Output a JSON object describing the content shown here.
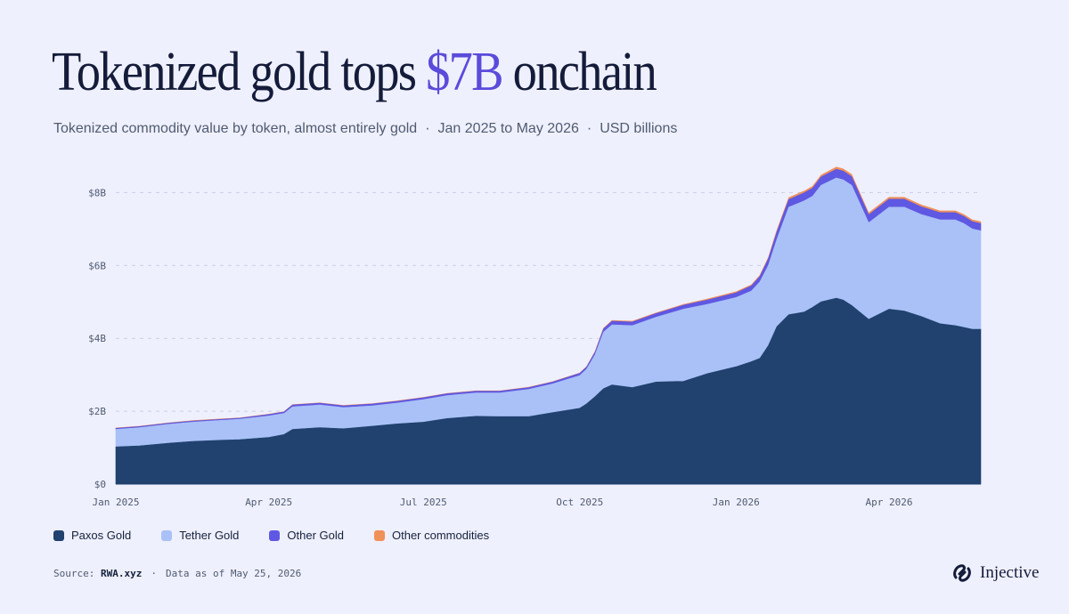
{
  "title": {
    "pre": "Tokenized gold tops ",
    "accent": "$7B",
    "post": " onchain"
  },
  "subtitle": {
    "part1": "Tokenized commodity value by token, almost entirely gold",
    "part2": "Jan 2025 to May 2026",
    "part3": "USD billions",
    "separator": "·"
  },
  "legend": [
    {
      "label": "Paxos Gold",
      "color": "#21416f"
    },
    {
      "label": "Tether Gold",
      "color": "#a9c1f7"
    },
    {
      "label": "Other Gold",
      "color": "#5f58e2"
    },
    {
      "label": "Other commodities",
      "color": "#f0915a"
    }
  ],
  "source": {
    "label": "Source:",
    "name": "RWA.xyz",
    "separator": "·",
    "asof": "Data as of May 25, 2026"
  },
  "brand": {
    "name": "Injective"
  },
  "chart_data": {
    "type": "area",
    "stacked": true,
    "grid": true,
    "ylim": [
      0,
      8.4
    ],
    "yticks": [
      0,
      2,
      4,
      6,
      8
    ],
    "ytick_labels": [
      "$0",
      "$2B",
      "$4B",
      "$6B",
      "$8B"
    ],
    "xlim": [
      "2025-01-01",
      "2026-05-25"
    ],
    "xticks": [
      "2025-01-01",
      "2025-04-01",
      "2025-07-01",
      "2025-10-01",
      "2026-01-01",
      "2026-04-01"
    ],
    "xtick_labels": [
      "Jan 2025",
      "Apr 2025",
      "Jul 2025",
      "Oct 2025",
      "Jan 2026",
      "Apr 2026"
    ],
    "x": [
      "2025-01-01",
      "2025-01-15",
      "2025-02-01",
      "2025-02-15",
      "2025-03-01",
      "2025-03-15",
      "2025-04-01",
      "2025-04-10",
      "2025-04-15",
      "2025-05-01",
      "2025-05-15",
      "2025-06-01",
      "2025-06-15",
      "2025-07-01",
      "2025-07-15",
      "2025-08-01",
      "2025-08-15",
      "2025-09-01",
      "2025-09-15",
      "2025-10-01",
      "2025-10-05",
      "2025-10-10",
      "2025-10-15",
      "2025-10-20",
      "2025-11-01",
      "2025-11-15",
      "2025-12-01",
      "2025-12-15",
      "2026-01-01",
      "2026-01-10",
      "2026-01-15",
      "2026-01-20",
      "2026-01-25",
      "2026-02-01",
      "2026-02-10",
      "2026-02-15",
      "2026-02-20",
      "2026-03-01",
      "2026-03-05",
      "2026-03-10",
      "2026-03-20",
      "2026-04-01",
      "2026-04-10",
      "2026-04-20",
      "2026-05-01",
      "2026-05-10",
      "2026-05-15",
      "2026-05-20",
      "2026-05-25"
    ],
    "series": [
      {
        "name": "Paxos Gold",
        "values": [
          1.02,
          1.05,
          1.12,
          1.17,
          1.2,
          1.22,
          1.28,
          1.36,
          1.5,
          1.55,
          1.52,
          1.59,
          1.65,
          1.7,
          1.8,
          1.86,
          1.85,
          1.85,
          1.96,
          2.08,
          2.2,
          2.4,
          2.62,
          2.72,
          2.65,
          2.8,
          2.82,
          3.03,
          3.22,
          3.36,
          3.45,
          3.8,
          4.32,
          4.65,
          4.72,
          4.85,
          5.0,
          5.1,
          5.05,
          4.9,
          4.52,
          4.8,
          4.75,
          4.6,
          4.4,
          4.35,
          4.3,
          4.25,
          4.25
        ]
      },
      {
        "name": "Tether Gold",
        "values": [
          0.48,
          0.5,
          0.52,
          0.53,
          0.54,
          0.56,
          0.59,
          0.58,
          0.62,
          0.62,
          0.58,
          0.56,
          0.57,
          0.62,
          0.63,
          0.64,
          0.65,
          0.75,
          0.79,
          0.9,
          0.95,
          1.15,
          1.55,
          1.65,
          1.7,
          1.78,
          1.98,
          1.9,
          1.9,
          1.94,
          2.1,
          2.2,
          2.4,
          2.95,
          3.05,
          3.05,
          3.2,
          3.3,
          3.3,
          3.3,
          2.65,
          2.8,
          2.85,
          2.8,
          2.85,
          2.9,
          2.85,
          2.75,
          2.7
        ]
      },
      {
        "name": "Other Gold",
        "values": [
          0.03,
          0.03,
          0.03,
          0.03,
          0.03,
          0.03,
          0.04,
          0.04,
          0.05,
          0.05,
          0.05,
          0.05,
          0.05,
          0.05,
          0.05,
          0.05,
          0.05,
          0.05,
          0.05,
          0.06,
          0.06,
          0.07,
          0.09,
          0.1,
          0.1,
          0.1,
          0.11,
          0.12,
          0.13,
          0.14,
          0.15,
          0.18,
          0.2,
          0.21,
          0.22,
          0.22,
          0.23,
          0.24,
          0.24,
          0.24,
          0.22,
          0.22,
          0.22,
          0.21,
          0.2,
          0.2,
          0.2,
          0.2,
          0.2
        ]
      },
      {
        "name": "Other commodities",
        "values": [
          0.01,
          0.01,
          0.01,
          0.01,
          0.01,
          0.01,
          0.01,
          0.01,
          0.01,
          0.01,
          0.01,
          0.01,
          0.01,
          0.01,
          0.01,
          0.01,
          0.01,
          0.01,
          0.01,
          0.01,
          0.01,
          0.02,
          0.02,
          0.02,
          0.02,
          0.02,
          0.02,
          0.03,
          0.03,
          0.03,
          0.03,
          0.04,
          0.05,
          0.05,
          0.05,
          0.05,
          0.05,
          0.06,
          0.06,
          0.06,
          0.05,
          0.05,
          0.05,
          0.05,
          0.05,
          0.05,
          0.05,
          0.05,
          0.05
        ]
      }
    ]
  }
}
